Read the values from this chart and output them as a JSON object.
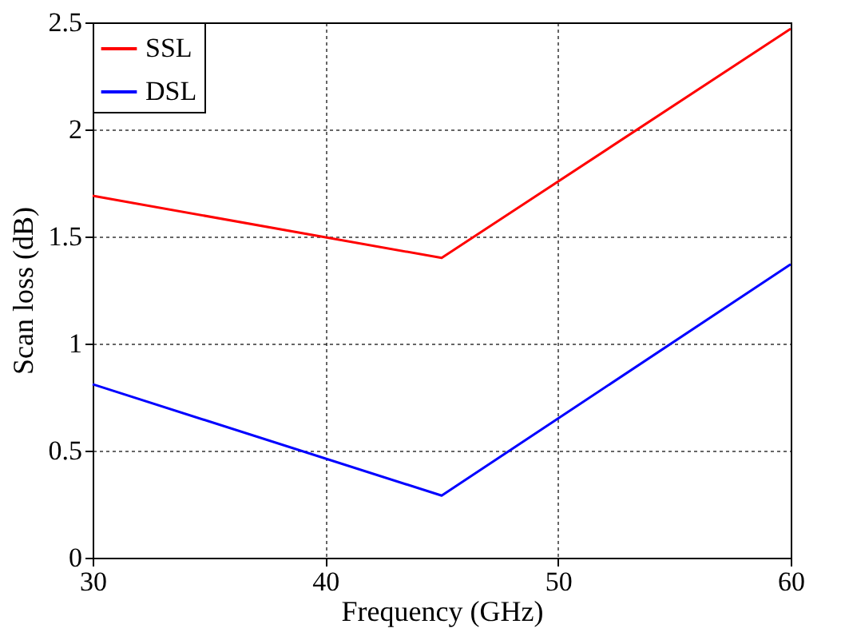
{
  "chart_data": {
    "type": "line",
    "xlabel": "Frequency (GHz)",
    "ylabel": "Scan loss (dB)",
    "x": [
      30,
      45,
      60
    ],
    "series": [
      {
        "name": "SSL",
        "color": "#ff0000",
        "values": [
          1.69,
          1.4,
          2.47
        ]
      },
      {
        "name": "DSL",
        "color": "#0000ff",
        "values": [
          0.81,
          0.29,
          1.37
        ]
      }
    ],
    "xlim": [
      30,
      60
    ],
    "xticks": [
      30,
      40,
      50,
      60
    ],
    "ylim": [
      0,
      2.5
    ],
    "yticks": [
      0,
      0.5,
      1,
      1.5,
      2,
      2.5
    ],
    "grid": true,
    "legend": "top left",
    "marker": "none",
    "line_style": "solid"
  }
}
